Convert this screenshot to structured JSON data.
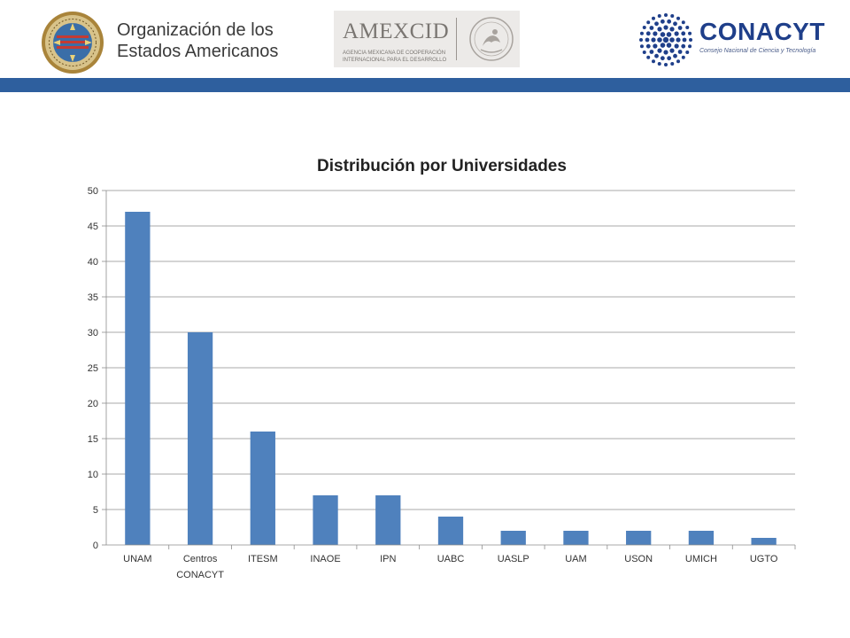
{
  "header": {
    "oea_line1": "Organización de los",
    "oea_line2": "Estados Americanos",
    "amexcid_name": "AMEXCID",
    "amexcid_sub": "AGENCIA MEXICANA DE COOPERACIÓN INTERNACIONAL PARA EL DESARROLLO",
    "conacyt_name": "CONACYT",
    "conacyt_sub": "Consejo Nacional de Ciencia y Tecnología",
    "colors": {
      "bar": "#2e5f9e",
      "conacyt": "#1f3f8a"
    }
  },
  "chart_data": {
    "type": "bar",
    "title": "Distribución por Universidades",
    "categories": [
      "UNAM",
      "Centros CONACYT",
      "ITESM",
      "INAOE",
      "IPN",
      "UABC",
      "UASLP",
      "UAM",
      "USON",
      "UMICH",
      "UGTO"
    ],
    "values": [
      47,
      30,
      16,
      7,
      7,
      4,
      2,
      2,
      2,
      2,
      1
    ],
    "ylim": [
      0,
      50
    ],
    "yticks": [
      0,
      5,
      10,
      15,
      20,
      25,
      30,
      35,
      40,
      45,
      50
    ],
    "grid": true,
    "color": "#4f81bd"
  }
}
